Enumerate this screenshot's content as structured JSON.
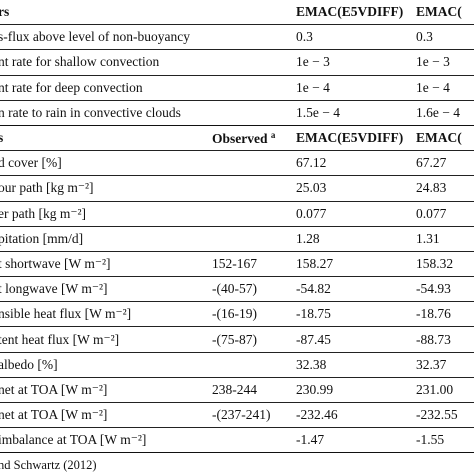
{
  "params_table": {
    "header": [
      "rs",
      "",
      "EMAC(E5VDIFF)",
      "EMAC("
    ],
    "rows": [
      [
        "s-flux above level of non-buoyancy",
        "",
        "0.3",
        "0.3"
      ],
      [
        "nt rate for shallow convection",
        "",
        "1e − 3",
        "1e − 3"
      ],
      [
        "nt rate for deep convection",
        "",
        "1e − 4",
        "1e − 4"
      ],
      [
        "n rate to rain in convective clouds",
        "",
        "1.5e − 4",
        "1.6e − 4"
      ]
    ]
  },
  "results_table": {
    "header": [
      "s",
      "Observed",
      "EMAC(E5VDIFF)",
      "EMAC("
    ],
    "header_sup": "a",
    "rows": [
      [
        "d cover [%]",
        "",
        "67.12",
        "67.27"
      ],
      [
        "our path [kg m⁻²]",
        "",
        "25.03",
        "24.83"
      ],
      [
        "er path [kg m⁻²]",
        "",
        "0.077",
        "0.077"
      ],
      [
        "pitation [mm/d]",
        "",
        "1.28",
        "1.31"
      ],
      [
        "t shortwave [W m⁻²]",
        "152-167",
        "158.27",
        "158.32"
      ],
      [
        "t longwave [W m⁻²]",
        "-(40-57)",
        "-54.82",
        "-54.93"
      ],
      [
        "nsible heat flux [W m⁻²]",
        "-(16-19)",
        "-18.75",
        "-18.76"
      ],
      [
        "tent heat flux [W m⁻²]",
        "-(75-87)",
        "-87.45",
        "-88.73"
      ],
      [
        "albedo [%]",
        "",
        "32.38",
        "32.37"
      ],
      [
        " net at TOA [W m⁻²]",
        "238-244",
        "230.99",
        "231.00"
      ],
      [
        " net at TOA [W m⁻²]",
        "-(237-241)",
        "-232.46",
        "-232.55"
      ],
      [
        "imbalance at TOA [W m⁻²]",
        "",
        "-1.47",
        "-1.55"
      ]
    ]
  },
  "footnote": "nd Schwartz (2012)"
}
